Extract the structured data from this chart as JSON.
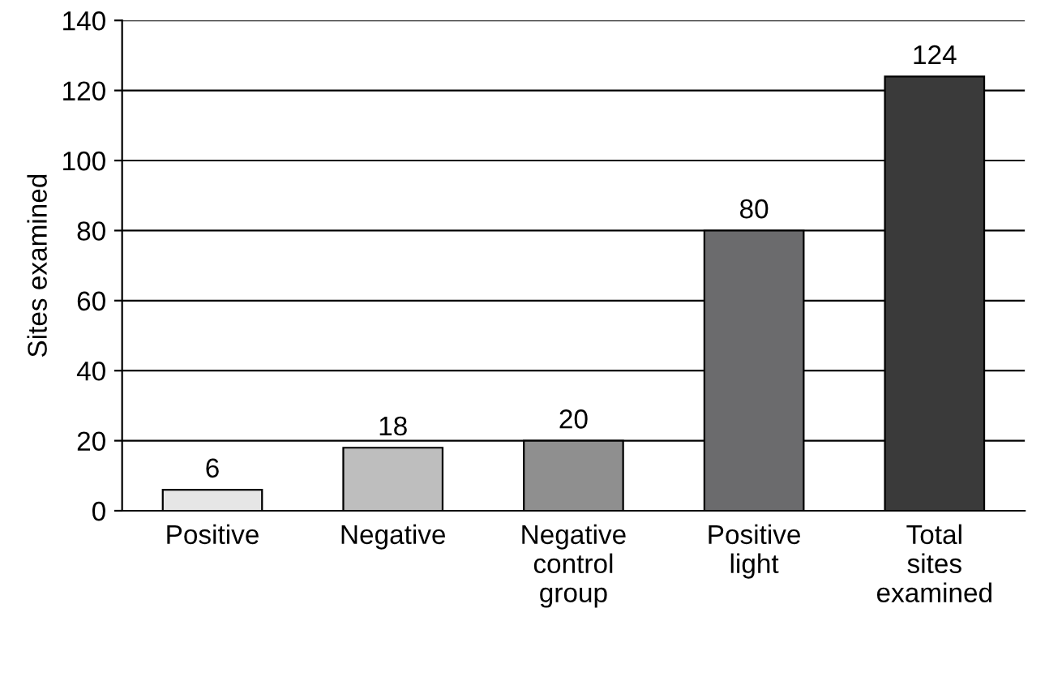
{
  "chart_data": {
    "type": "bar",
    "ylabel": "Sites examined",
    "categories": [
      "Positive",
      "Negative",
      "Negative\ncontrol\ngroup",
      "Positive\nlight",
      "Total\nsites\nexamined"
    ],
    "values": [
      6,
      18,
      20,
      80,
      124
    ],
    "colors": [
      "#e6e6e6",
      "#bebebe",
      "#8f8f8f",
      "#6b6b6d",
      "#3a3a3a"
    ],
    "ylim": [
      0,
      140
    ],
    "yticks": [
      0,
      20,
      40,
      60,
      80,
      100,
      120,
      140
    ],
    "grid": "y",
    "data_labels": true
  }
}
